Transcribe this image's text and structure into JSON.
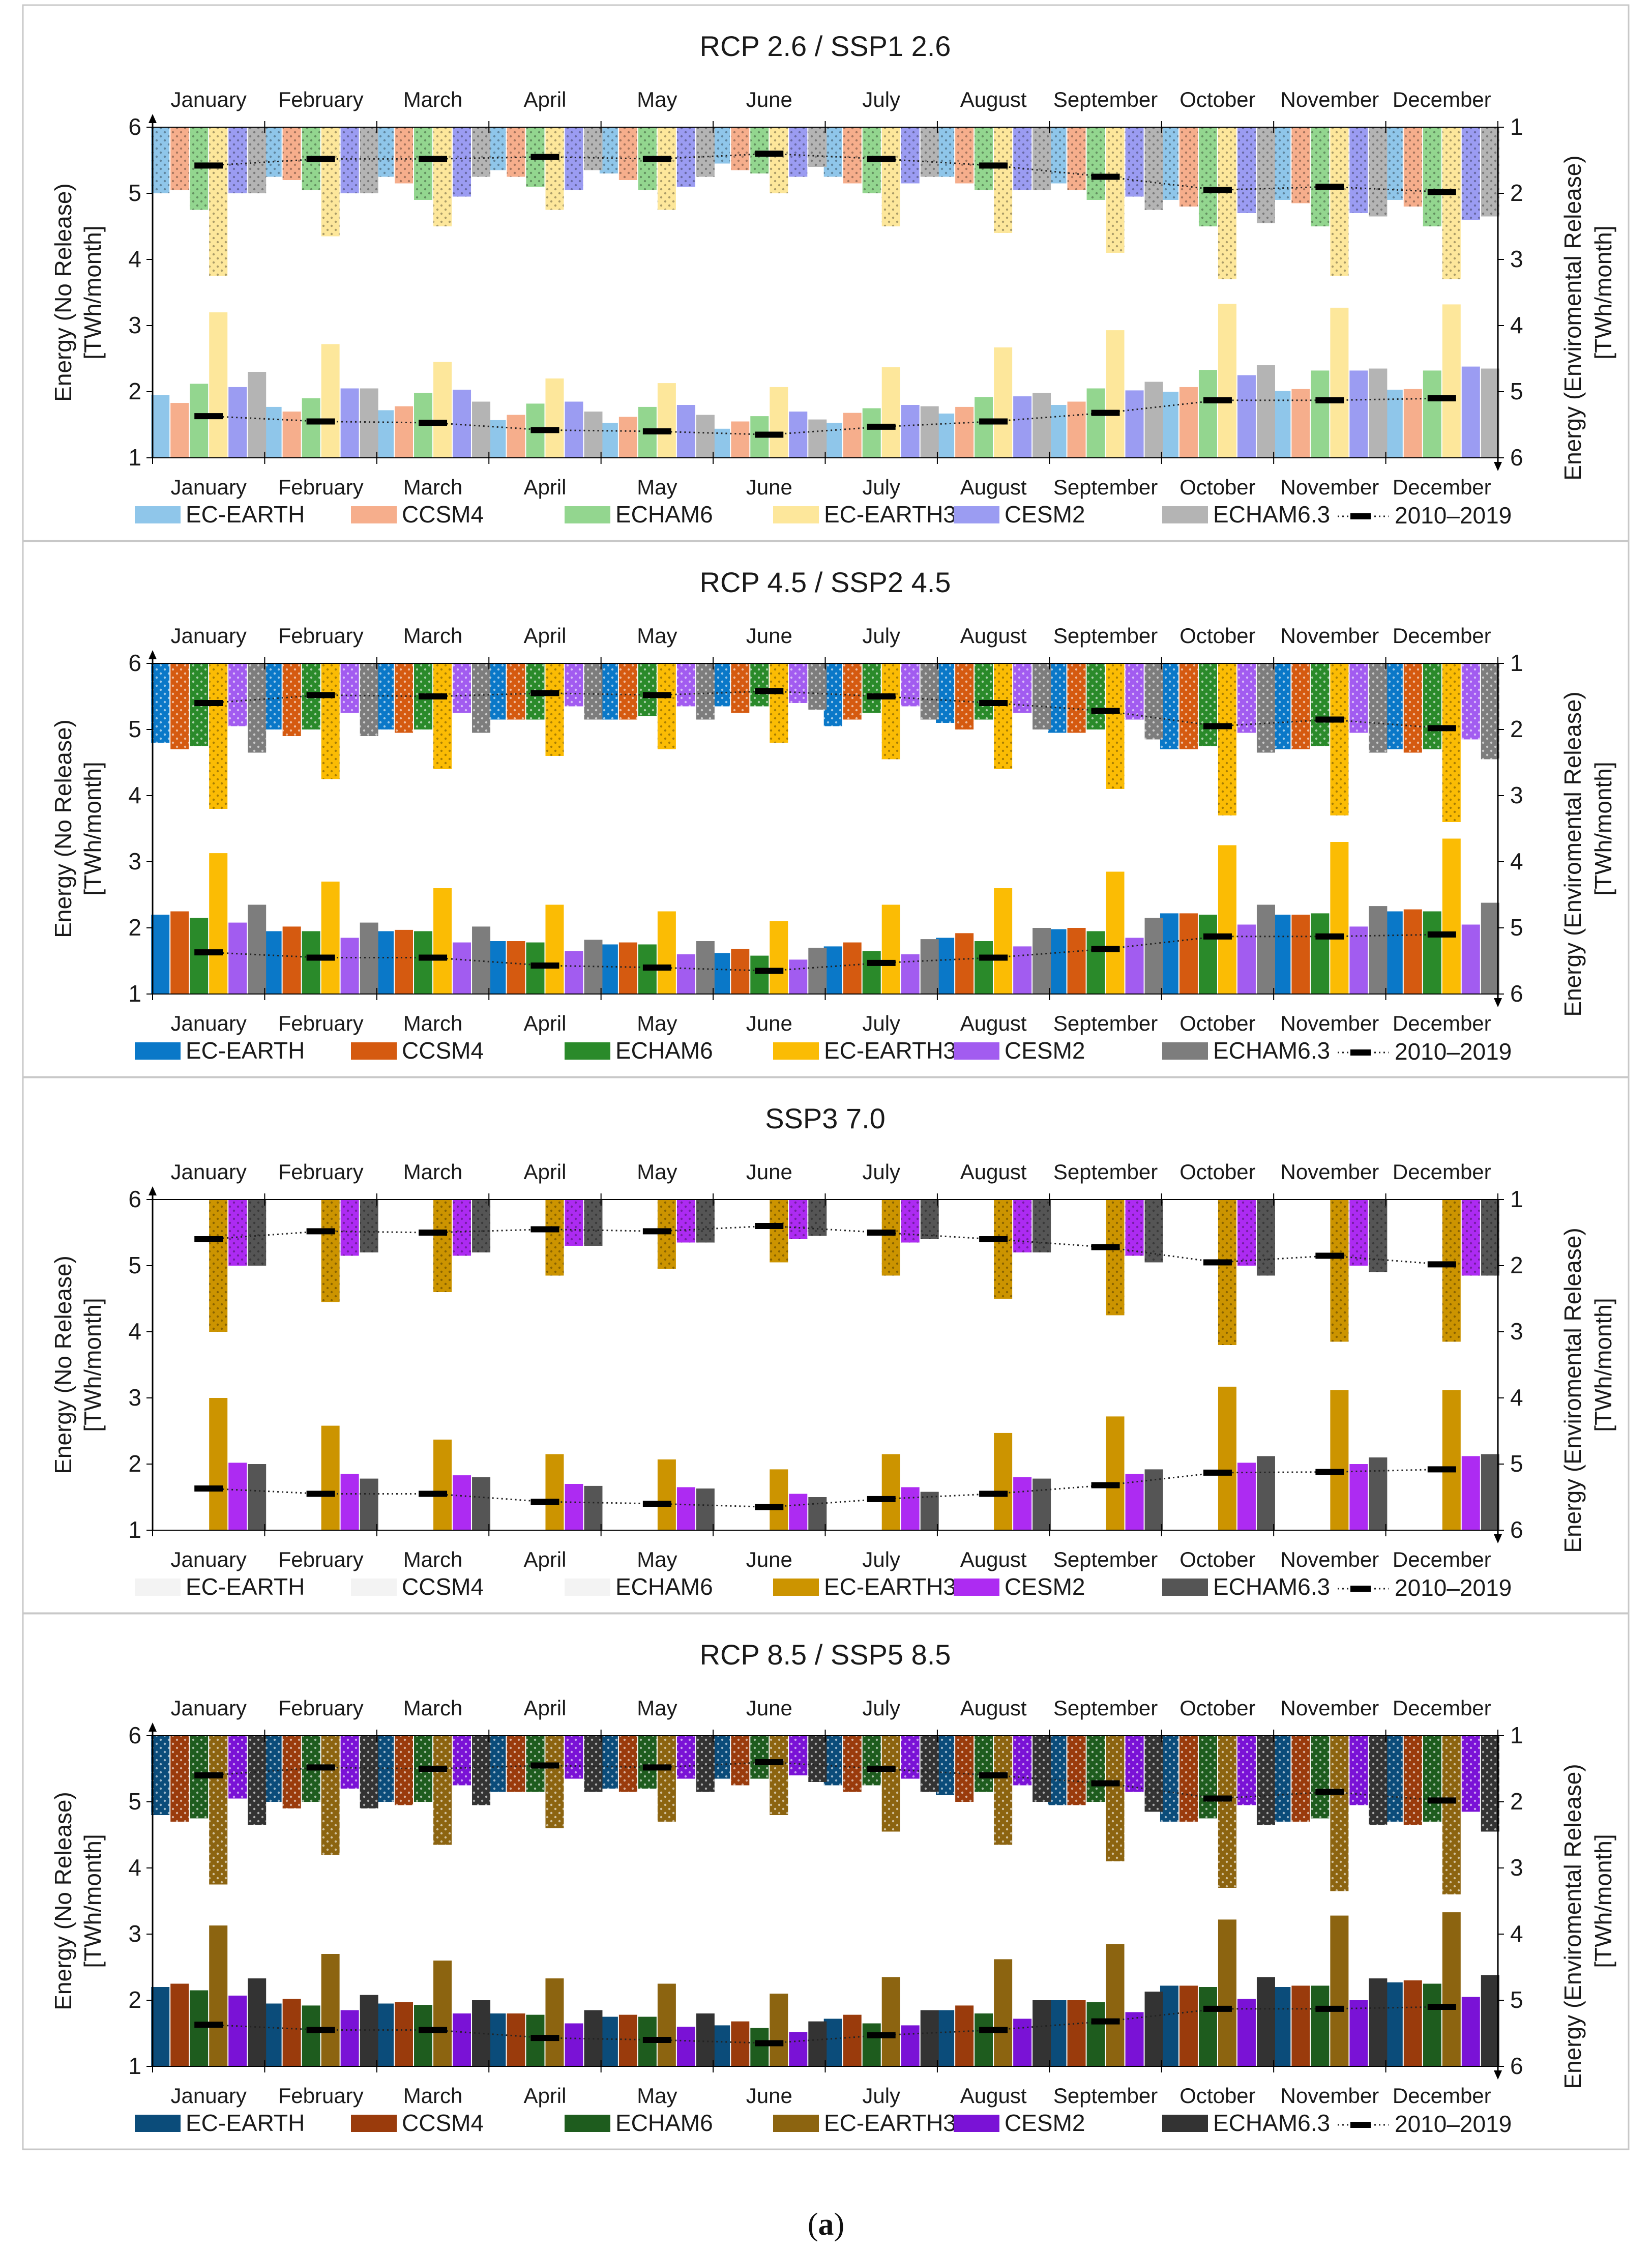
{
  "months": [
    "January",
    "February",
    "March",
    "April",
    "May",
    "June",
    "July",
    "August",
    "September",
    "October",
    "November",
    "December"
  ],
  "axes": {
    "left_label_1": "Energy (No Release)",
    "left_label_2": "[TWh/month]",
    "right_label_1": "Energy (Enviromental Release)",
    "right_label_2": "[TWh/month]",
    "left_ticks": [
      "1",
      "2",
      "3",
      "4",
      "5",
      "6"
    ],
    "right_ticks": [
      "1",
      "2",
      "3",
      "4",
      "5",
      "6"
    ]
  },
  "model_names": [
    "EC-EARTH",
    "CCSM4",
    "ECHAM6",
    "EC-EARTH3",
    "CESM2",
    "ECHAM6.3"
  ],
  "reference_name": "2010–2019",
  "caption": {
    "open": "(",
    "letter": "a",
    "close": ")"
  },
  "chart_data": [
    {
      "type": "bar",
      "title": "RCP 2.6 / SSP1 2.6",
      "ylim_left": [
        1,
        6
      ],
      "ylim_right_inverted": [
        1,
        6
      ],
      "colors": [
        "#8fc6ea",
        "#f6ae8c",
        "#93d68f",
        "#fde79b",
        "#9b9cf2",
        "#b4b4b4"
      ],
      "series": [
        {
          "name": "EC-EARTH",
          "no_release": [
            1.95,
            1.77,
            1.72,
            1.57,
            1.53,
            1.44,
            1.53,
            1.67,
            1.8,
            2.0,
            2.01,
            2.03
          ],
          "env_release": [
            2.0,
            1.75,
            1.75,
            1.65,
            1.7,
            1.55,
            1.75,
            1.75,
            1.85,
            2.1,
            2.1,
            2.1
          ]
        },
        {
          "name": "CCSM4",
          "no_release": [
            1.83,
            1.7,
            1.78,
            1.65,
            1.62,
            1.55,
            1.68,
            1.77,
            1.85,
            2.07,
            2.04,
            2.04
          ],
          "env_release": [
            1.95,
            1.8,
            1.85,
            1.75,
            1.8,
            1.65,
            1.85,
            1.85,
            1.95,
            2.2,
            2.15,
            2.2
          ]
        },
        {
          "name": "ECHAM6",
          "no_release": [
            2.12,
            1.9,
            1.98,
            1.82,
            1.77,
            1.63,
            1.75,
            1.92,
            2.05,
            2.33,
            2.32,
            2.32
          ],
          "env_release": [
            2.25,
            1.95,
            2.1,
            1.9,
            1.95,
            1.7,
            2.0,
            1.95,
            2.1,
            2.5,
            2.5,
            2.5
          ]
        },
        {
          "name": "EC-EARTH3",
          "no_release": [
            3.2,
            2.72,
            2.45,
            2.2,
            2.13,
            2.07,
            2.37,
            2.67,
            2.93,
            3.33,
            3.27,
            3.32
          ],
          "env_release": [
            3.25,
            2.65,
            2.5,
            2.25,
            2.25,
            2.0,
            2.5,
            2.6,
            2.9,
            3.3,
            3.25,
            3.3
          ]
        },
        {
          "name": "CESM2",
          "no_release": [
            2.07,
            2.05,
            2.03,
            1.85,
            1.8,
            1.7,
            1.8,
            1.93,
            2.02,
            2.25,
            2.32,
            2.38
          ],
          "env_release": [
            2.0,
            2.0,
            2.05,
            1.95,
            1.9,
            1.75,
            1.85,
            1.95,
            2.05,
            2.3,
            2.3,
            2.4
          ]
        },
        {
          "name": "ECHAM6.3",
          "no_release": [
            2.3,
            2.05,
            1.85,
            1.7,
            1.65,
            1.58,
            1.78,
            1.98,
            2.15,
            2.4,
            2.35,
            2.35
          ],
          "env_release": [
            2.0,
            2.0,
            1.75,
            1.65,
            1.75,
            1.6,
            1.75,
            1.95,
            2.25,
            2.45,
            2.35,
            2.35
          ]
        }
      ],
      "reference": {
        "name": "2010–2019",
        "no_release": [
          1.63,
          1.55,
          1.53,
          1.42,
          1.4,
          1.35,
          1.47,
          1.55,
          1.68,
          1.87,
          1.87,
          1.9
        ],
        "env_release": [
          1.58,
          1.48,
          1.48,
          1.45,
          1.48,
          1.4,
          1.48,
          1.58,
          1.75,
          1.95,
          1.9,
          1.98
        ]
      },
      "hidden_models": []
    },
    {
      "type": "bar",
      "title": "RCP 4.5 / SSP2 4.5",
      "ylim_left": [
        1,
        6
      ],
      "ylim_right_inverted": [
        1,
        6
      ],
      "colors": [
        "#0a78c8",
        "#d55a10",
        "#2a8a2a",
        "#fbbc04",
        "#a25cf0",
        "#7d7d7d"
      ],
      "series": [
        {
          "name": "EC-EARTH",
          "no_release": [
            2.2,
            1.95,
            1.95,
            1.8,
            1.75,
            1.62,
            1.72,
            1.85,
            1.98,
            2.22,
            2.2,
            2.25
          ],
          "env_release": [
            2.2,
            2.0,
            2.0,
            1.85,
            1.85,
            1.65,
            1.95,
            1.9,
            2.05,
            2.3,
            2.3,
            2.3
          ]
        },
        {
          "name": "CCSM4",
          "no_release": [
            2.25,
            2.02,
            1.97,
            1.8,
            1.78,
            1.68,
            1.78,
            1.92,
            2.0,
            2.22,
            2.2,
            2.28
          ],
          "env_release": [
            2.3,
            2.1,
            2.05,
            1.85,
            1.85,
            1.75,
            1.85,
            2.0,
            2.05,
            2.3,
            2.3,
            2.35
          ]
        },
        {
          "name": "ECHAM6",
          "no_release": [
            2.15,
            1.95,
            1.95,
            1.78,
            1.75,
            1.58,
            1.65,
            1.8,
            1.95,
            2.2,
            2.22,
            2.25
          ],
          "env_release": [
            2.25,
            2.0,
            2.0,
            1.85,
            1.8,
            1.65,
            1.75,
            1.85,
            2.0,
            2.25,
            2.25,
            2.3
          ]
        },
        {
          "name": "EC-EARTH3",
          "no_release": [
            3.13,
            2.7,
            2.6,
            2.35,
            2.25,
            2.1,
            2.35,
            2.6,
            2.85,
            3.25,
            3.3,
            3.35
          ],
          "env_release": [
            3.2,
            2.75,
            2.6,
            2.4,
            2.3,
            2.2,
            2.45,
            2.6,
            2.9,
            3.3,
            3.3,
            3.4
          ]
        },
        {
          "name": "CESM2",
          "no_release": [
            2.08,
            1.85,
            1.78,
            1.65,
            1.6,
            1.52,
            1.6,
            1.72,
            1.85,
            2.05,
            2.02,
            2.05
          ],
          "env_release": [
            1.95,
            1.75,
            1.75,
            1.65,
            1.65,
            1.6,
            1.65,
            1.75,
            1.85,
            2.05,
            2.05,
            2.15
          ]
        },
        {
          "name": "ECHAM6.3",
          "no_release": [
            2.35,
            2.08,
            2.02,
            1.82,
            1.8,
            1.7,
            1.83,
            2.0,
            2.15,
            2.35,
            2.33,
            2.38
          ],
          "env_release": [
            2.35,
            2.1,
            2.05,
            1.85,
            1.85,
            1.7,
            1.85,
            2.0,
            2.15,
            2.35,
            2.35,
            2.45
          ]
        }
      ],
      "reference": {
        "name": "2010–2019",
        "no_release": [
          1.63,
          1.55,
          1.55,
          1.43,
          1.4,
          1.35,
          1.47,
          1.55,
          1.68,
          1.87,
          1.87,
          1.9
        ],
        "env_release": [
          1.6,
          1.48,
          1.5,
          1.45,
          1.48,
          1.42,
          1.5,
          1.6,
          1.72,
          1.95,
          1.85,
          1.98
        ]
      },
      "hidden_models": []
    },
    {
      "type": "bar",
      "title": "SSP3 7.0",
      "ylim_left": [
        1,
        6
      ],
      "ylim_right_inverted": [
        1,
        6
      ],
      "colors": [
        "#f3f3f3",
        "#f3f3f3",
        "#f3f3f3",
        "#cc9400",
        "#ad2bf2",
        "#555555"
      ],
      "series": [
        {
          "name": "EC-EARTH",
          "no_release": [
            1,
            1,
            1,
            1,
            1,
            1,
            1,
            1,
            1,
            1,
            1,
            1
          ],
          "env_release": [
            1,
            1,
            1,
            1,
            1,
            1,
            1,
            1,
            1,
            1,
            1,
            1
          ]
        },
        {
          "name": "CCSM4",
          "no_release": [
            1,
            1,
            1,
            1,
            1,
            1,
            1,
            1,
            1,
            1,
            1,
            1
          ],
          "env_release": [
            1,
            1,
            1,
            1,
            1,
            1,
            1,
            1,
            1,
            1,
            1,
            1
          ]
        },
        {
          "name": "ECHAM6",
          "no_release": [
            1,
            1,
            1,
            1,
            1,
            1,
            1,
            1,
            1,
            1,
            1,
            1
          ],
          "env_release": [
            1,
            1,
            1,
            1,
            1,
            1,
            1,
            1,
            1,
            1,
            1,
            1
          ]
        },
        {
          "name": "EC-EARTH3",
          "no_release": [
            3.0,
            2.58,
            2.37,
            2.15,
            2.07,
            1.92,
            2.15,
            2.47,
            2.72,
            3.17,
            3.12,
            3.12
          ],
          "env_release": [
            3.0,
            2.55,
            2.4,
            2.15,
            2.05,
            1.95,
            2.15,
            2.5,
            2.75,
            3.2,
            3.15,
            3.15
          ]
        },
        {
          "name": "CESM2",
          "no_release": [
            2.02,
            1.85,
            1.83,
            1.7,
            1.65,
            1.55,
            1.65,
            1.8,
            1.85,
            2.02,
            2.0,
            2.12
          ],
          "env_release": [
            2.0,
            1.85,
            1.85,
            1.7,
            1.65,
            1.6,
            1.65,
            1.8,
            1.85,
            2.0,
            2.0,
            2.15
          ]
        },
        {
          "name": "ECHAM6.3",
          "no_release": [
            2.0,
            1.78,
            1.8,
            1.67,
            1.63,
            1.5,
            1.58,
            1.78,
            1.92,
            2.12,
            2.1,
            2.15
          ],
          "env_release": [
            2.0,
            1.8,
            1.8,
            1.7,
            1.65,
            1.55,
            1.6,
            1.8,
            1.95,
            2.15,
            2.1,
            2.15
          ]
        }
      ],
      "reference": {
        "name": "2010–2019",
        "no_release": [
          1.63,
          1.55,
          1.55,
          1.43,
          1.4,
          1.35,
          1.47,
          1.55,
          1.68,
          1.87,
          1.88,
          1.92
        ],
        "env_release": [
          1.6,
          1.48,
          1.5,
          1.45,
          1.48,
          1.4,
          1.5,
          1.6,
          1.72,
          1.95,
          1.85,
          1.98
        ]
      },
      "hidden_models": [
        "EC-EARTH",
        "CCSM4",
        "ECHAM6"
      ]
    },
    {
      "type": "bar",
      "title": "RCP 8.5 / SSP5 8.5",
      "ylim_left": [
        1,
        6
      ],
      "ylim_right_inverted": [
        1,
        6
      ],
      "colors": [
        "#0b4c7a",
        "#9a3b0c",
        "#1e5c1e",
        "#8c6410",
        "#7a12d6",
        "#333333"
      ],
      "series": [
        {
          "name": "EC-EARTH",
          "no_release": [
            2.2,
            1.95,
            1.95,
            1.8,
            1.75,
            1.62,
            1.72,
            1.85,
            2.0,
            2.22,
            2.2,
            2.27
          ],
          "env_release": [
            2.2,
            2.0,
            2.0,
            1.85,
            1.8,
            1.65,
            1.75,
            1.9,
            2.05,
            2.3,
            2.3,
            2.3
          ]
        },
        {
          "name": "CCSM4",
          "no_release": [
            2.25,
            2.02,
            1.97,
            1.8,
            1.78,
            1.68,
            1.78,
            1.92,
            2.0,
            2.22,
            2.22,
            2.3
          ],
          "env_release": [
            2.3,
            2.1,
            2.05,
            1.85,
            1.85,
            1.75,
            1.85,
            2.0,
            2.05,
            2.3,
            2.3,
            2.35
          ]
        },
        {
          "name": "ECHAM6",
          "no_release": [
            2.15,
            1.92,
            1.93,
            1.78,
            1.75,
            1.58,
            1.65,
            1.8,
            1.97,
            2.2,
            2.22,
            2.25
          ],
          "env_release": [
            2.25,
            2.0,
            2.0,
            1.85,
            1.8,
            1.65,
            1.75,
            1.85,
            2.0,
            2.25,
            2.25,
            2.3
          ]
        },
        {
          "name": "EC-EARTH3",
          "no_release": [
            3.13,
            2.7,
            2.6,
            2.33,
            2.25,
            2.1,
            2.35,
            2.62,
            2.85,
            3.22,
            3.28,
            3.33
          ],
          "env_release": [
            3.25,
            2.8,
            2.65,
            2.4,
            2.3,
            2.2,
            2.45,
            2.65,
            2.9,
            3.3,
            3.35,
            3.4
          ]
        },
        {
          "name": "CESM2",
          "no_release": [
            2.07,
            1.85,
            1.8,
            1.65,
            1.6,
            1.52,
            1.62,
            1.72,
            1.82,
            2.02,
            2.0,
            2.05
          ],
          "env_release": [
            1.95,
            1.8,
            1.75,
            1.65,
            1.65,
            1.6,
            1.65,
            1.75,
            1.85,
            2.05,
            2.05,
            2.15
          ]
        },
        {
          "name": "ECHAM6.3",
          "no_release": [
            2.33,
            2.08,
            2.0,
            1.85,
            1.8,
            1.68,
            1.85,
            2.0,
            2.13,
            2.35,
            2.33,
            2.38
          ],
          "env_release": [
            2.35,
            2.1,
            2.05,
            1.85,
            1.85,
            1.7,
            1.85,
            2.0,
            2.15,
            2.35,
            2.35,
            2.45
          ]
        }
      ],
      "reference": {
        "name": "2010–2019",
        "no_release": [
          1.63,
          1.55,
          1.55,
          1.43,
          1.4,
          1.35,
          1.47,
          1.55,
          1.68,
          1.87,
          1.87,
          1.9
        ],
        "env_release": [
          1.6,
          1.48,
          1.5,
          1.45,
          1.48,
          1.4,
          1.5,
          1.6,
          1.72,
          1.95,
          1.85,
          1.98
        ]
      },
      "hidden_models": []
    }
  ]
}
